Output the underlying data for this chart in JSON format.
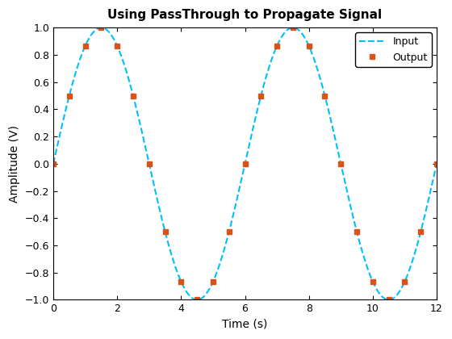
{
  "title": "Using PassThrough to Propagate Signal",
  "xlabel": "Time (s)",
  "ylabel": "Amplitude (V)",
  "xlim": [
    0,
    12
  ],
  "ylim": [
    -1,
    1
  ],
  "xticks": [
    0,
    2,
    4,
    6,
    8,
    10,
    12
  ],
  "yticks": [
    -1,
    -0.8,
    -0.6,
    -0.4,
    -0.2,
    0,
    0.2,
    0.4,
    0.6,
    0.8,
    1
  ],
  "frequency": 0.1667,
  "input_color": "#00BFFF",
  "output_color": "#D95319",
  "input_linewidth": 1.5,
  "input_linestyle": "--",
  "output_marker": "s",
  "output_markersize": 4,
  "num_points_input": 2000,
  "num_points_output": 25,
  "legend_labels": [
    "Input",
    "Output"
  ],
  "legend_loc": "upper right",
  "background_color": "#ffffff",
  "title_fontsize": 11,
  "figwidth": 5.6,
  "figheight": 4.2,
  "dpi": 100
}
